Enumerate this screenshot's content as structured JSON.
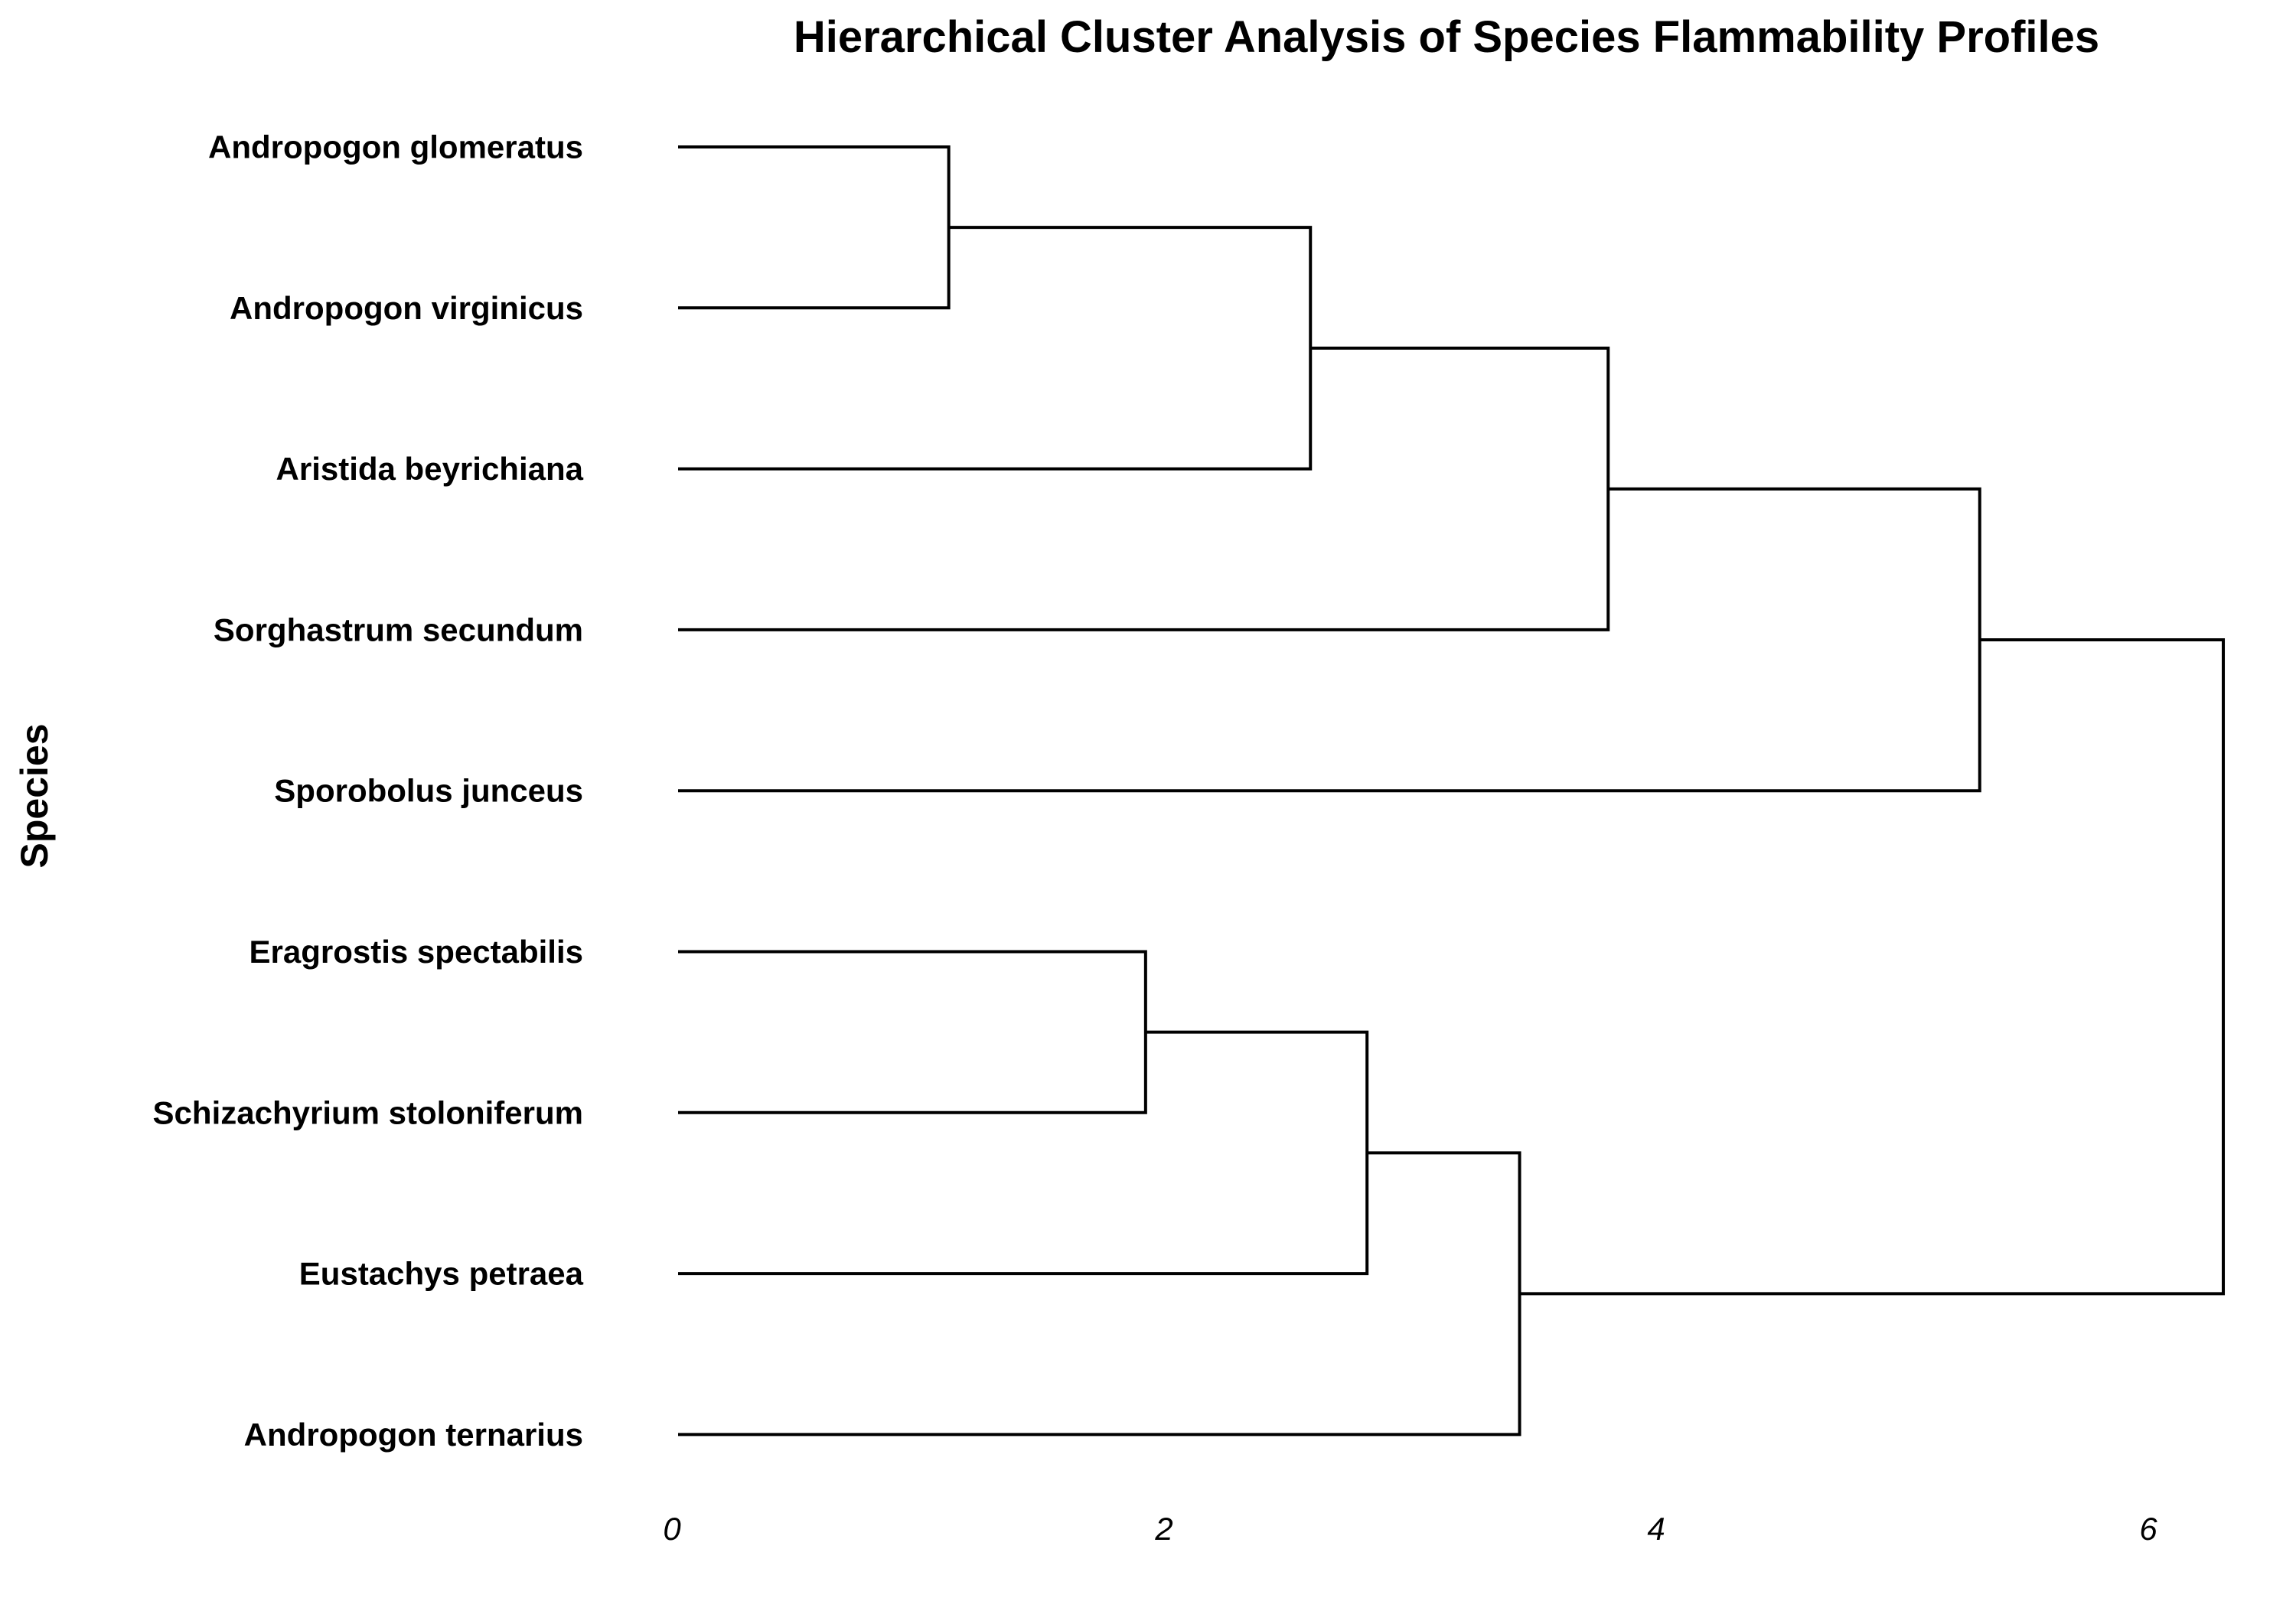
{
  "chart_data": {
    "type": "dendrogram",
    "title": "Hierarchical Cluster Analysis of Species Flammability Profiles",
    "ylabel": "Species",
    "xlabel": "",
    "xlim": [
      0,
      6.3
    ],
    "x_ticks": [
      0,
      2,
      4,
      6
    ],
    "x_tick_labels": [
      "0",
      "2",
      "4",
      "6"
    ],
    "leaves": [
      "Andropogon glomeratus",
      "Andropogon virginicus",
      "Aristida beyrichiana",
      "Sorghastrum secundum",
      "Sporobolus junceus",
      "Eragrostis spectabilis",
      "Schizachyrium stoloniferum",
      "Eustachys petraea",
      "Andropogon ternarius"
    ],
    "merges": [
      {
        "left": "Andropogon glomeratus",
        "right": "Andropogon virginicus",
        "height": 1.1,
        "id": "c1"
      },
      {
        "left": "c1",
        "right": "Aristida beyrichiana",
        "height": 2.57,
        "id": "c2"
      },
      {
        "left": "c2",
        "right": "Sorghastrum secundum",
        "height": 3.78,
        "id": "c3"
      },
      {
        "left": "c3",
        "right": "Sporobolus junceus",
        "height": 5.29,
        "id": "c4"
      },
      {
        "left": "Eragrostis spectabilis",
        "right": "Schizachyrium stoloniferum",
        "height": 1.9,
        "id": "c5"
      },
      {
        "left": "c5",
        "right": "Eustachys petraea",
        "height": 2.8,
        "id": "c6"
      },
      {
        "left": "c6",
        "right": "Andropogon ternarius",
        "height": 3.42,
        "id": "c7"
      },
      {
        "left": "c4",
        "right": "c7",
        "height": 6.28,
        "id": "c8"
      }
    ],
    "grid": false,
    "legend": "none",
    "line_color": "#000000"
  }
}
